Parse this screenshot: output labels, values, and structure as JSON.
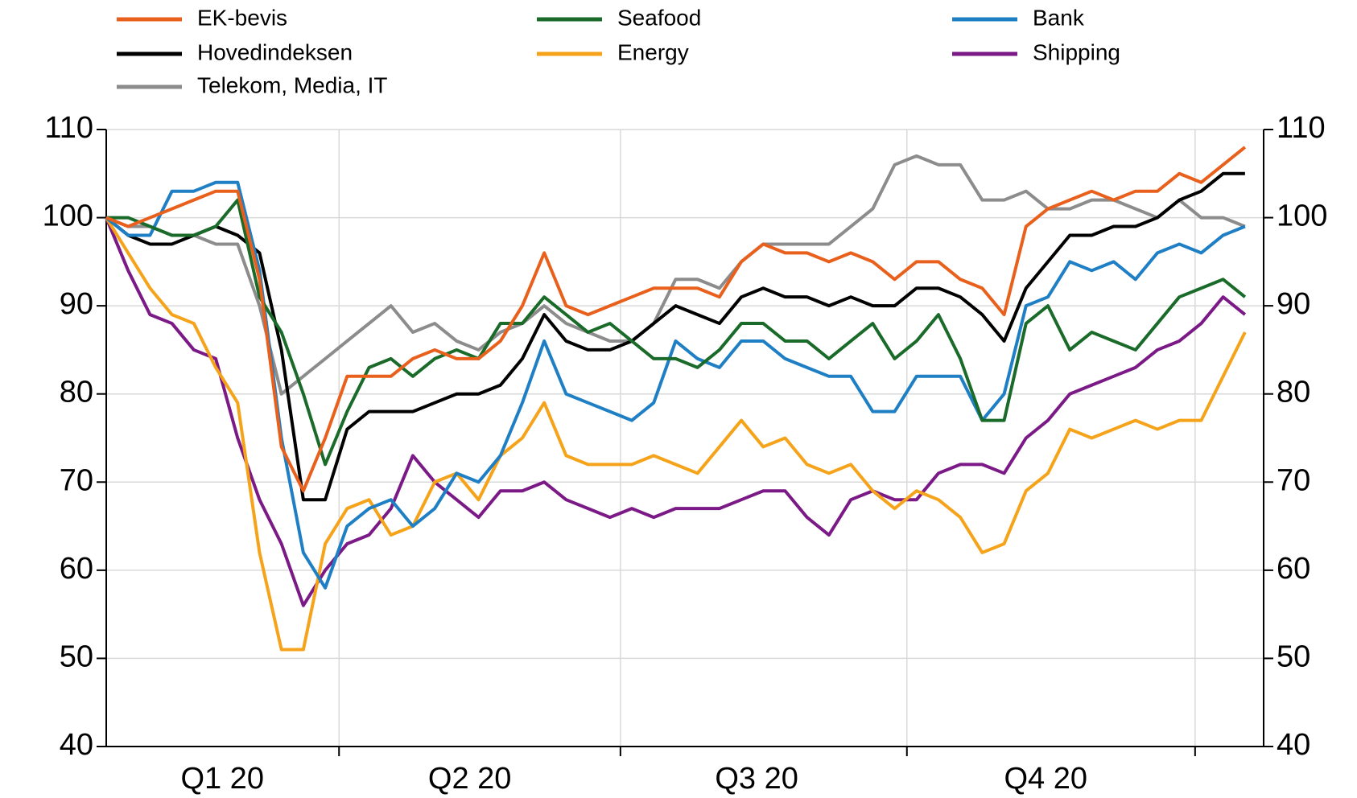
{
  "chart_data": {
    "type": "line",
    "x": [
      0,
      1,
      2,
      3,
      4,
      5,
      6,
      7,
      8,
      9,
      10,
      11,
      12,
      13,
      14,
      15,
      16,
      17,
      18,
      19,
      20,
      21,
      22,
      23,
      24,
      25,
      26,
      27,
      28,
      29,
      30,
      31,
      32,
      33,
      34,
      35,
      36,
      37,
      38,
      39,
      40,
      41,
      42,
      43,
      44,
      45,
      46,
      47,
      48,
      49,
      50,
      51,
      52
    ],
    "xlim": [
      0,
      52.85
    ],
    "xticks": [
      {
        "value": 5.3,
        "label": "Q1 20"
      },
      {
        "value": 16.6,
        "label": "Q2 20"
      },
      {
        "value": 29.7,
        "label": "Q3 20"
      },
      {
        "value": 42.9,
        "label": "Q4 20"
      }
    ],
    "xgrid": [
      10.63,
      23.48,
      36.56,
      49.72
    ],
    "ylim": [
      40,
      110
    ],
    "yticks": [
      40,
      50,
      60,
      70,
      80,
      90,
      100,
      110
    ],
    "y2lim": [
      40,
      110
    ],
    "y2ticks": [
      40,
      50,
      60,
      70,
      80,
      90,
      100,
      110
    ],
    "grid": true,
    "series": [
      {
        "name": "EK-bevis",
        "color": "#e8601c",
        "values": [
          100,
          99,
          100,
          101,
          102,
          103,
          103,
          93,
          74,
          69,
          75,
          82,
          82,
          82,
          84,
          85,
          84,
          84,
          86,
          90,
          96,
          90,
          89,
          90,
          91,
          92,
          92,
          92,
          91,
          95,
          97,
          96,
          96,
          95,
          96,
          95,
          93,
          95,
          95,
          93,
          92,
          89,
          99,
          101,
          102,
          103,
          102,
          103,
          103,
          105,
          104,
          106,
          108
        ]
      },
      {
        "name": "Seafood",
        "color": "#1a6b2a",
        "values": [
          100,
          100,
          99,
          98,
          98,
          99,
          102,
          91,
          87,
          80,
          72,
          78,
          83,
          84,
          82,
          84,
          85,
          84,
          88,
          88,
          91,
          89,
          87,
          88,
          86,
          84,
          84,
          83,
          85,
          88,
          88,
          86,
          86,
          84,
          86,
          88,
          84,
          86,
          89,
          84,
          77,
          77,
          88,
          90,
          85,
          87,
          86,
          85,
          88,
          91,
          92,
          93,
          91
        ]
      },
      {
        "name": "Bank",
        "color": "#1f7fc4",
        "values": [
          100,
          98,
          98,
          103,
          103,
          104,
          104,
          94,
          75,
          62,
          58,
          65,
          67,
          68,
          65,
          67,
          71,
          70,
          73,
          79,
          86,
          80,
          79,
          78,
          77,
          79,
          86,
          84,
          83,
          86,
          86,
          84,
          83,
          82,
          82,
          78,
          78,
          82,
          82,
          82,
          77,
          80,
          90,
          91,
          95,
          94,
          95,
          93,
          96,
          97,
          96,
          98,
          99
        ]
      },
      {
        "name": "Hovedindeksen",
        "color": "#000000",
        "values": [
          100,
          98,
          97,
          97,
          98,
          99,
          98,
          96,
          85,
          68,
          68,
          76,
          78,
          78,
          78,
          79,
          80,
          80,
          81,
          84,
          89,
          86,
          85,
          85,
          86,
          88,
          90,
          89,
          88,
          91,
          92,
          91,
          91,
          90,
          91,
          90,
          90,
          92,
          92,
          91,
          89,
          86,
          92,
          95,
          98,
          98,
          99,
          99,
          100,
          102,
          103,
          105,
          105
        ]
      },
      {
        "name": "Energy",
        "color": "#f5a31a",
        "values": [
          100,
          96,
          92,
          89,
          88,
          83,
          79,
          62,
          51,
          51,
          63,
          67,
          68,
          64,
          65,
          70,
          71,
          68,
          73,
          75,
          79,
          73,
          72,
          72,
          72,
          73,
          72,
          71,
          74,
          77,
          74,
          75,
          72,
          71,
          72,
          69,
          67,
          69,
          68,
          66,
          62,
          63,
          69,
          71,
          76,
          75,
          76,
          77,
          76,
          77,
          77,
          82,
          87
        ]
      },
      {
        "name": "Shipping",
        "color": "#7b1a86",
        "values": [
          100,
          94,
          89,
          88,
          85,
          84,
          75,
          68,
          63,
          56,
          60,
          63,
          64,
          67,
          73,
          70,
          68,
          66,
          69,
          69,
          70,
          68,
          67,
          66,
          67,
          66,
          67,
          67,
          67,
          68,
          69,
          69,
          66,
          64,
          68,
          69,
          68,
          68,
          71,
          72,
          72,
          71,
          75,
          77,
          80,
          81,
          82,
          83,
          85,
          86,
          88,
          91,
          89
        ]
      },
      {
        "name": "Telekom, Media, IT",
        "color": "#8c8c8c",
        "values": [
          100,
          99,
          99,
          98,
          98,
          97,
          97,
          90,
          80,
          82,
          84,
          86,
          88,
          90,
          87,
          88,
          86,
          85,
          87,
          88,
          90,
          88,
          87,
          86,
          86,
          88,
          93,
          93,
          92,
          95,
          97,
          97,
          97,
          97,
          99,
          101,
          106,
          107,
          106,
          106,
          102,
          102,
          103,
          101,
          101,
          102,
          102,
          101,
          100,
          102,
          100,
          100,
          99
        ]
      }
    ]
  }
}
